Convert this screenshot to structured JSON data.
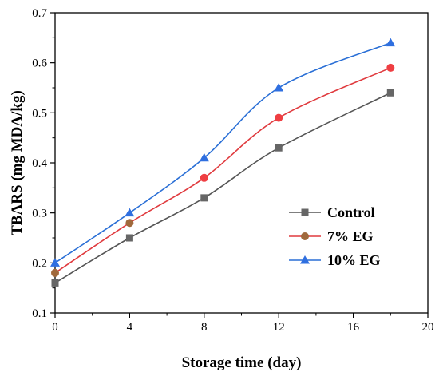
{
  "chart_data": {
    "type": "line",
    "title": "",
    "xlabel": "Storage time (day)",
    "ylabel": "TBARS (mg MDA/kg)",
    "xlim": [
      0,
      20
    ],
    "ylim": [
      0.1,
      0.7
    ],
    "x_ticks": [
      0,
      4,
      8,
      12,
      16,
      20
    ],
    "y_ticks": [
      0.1,
      0.2,
      0.3,
      0.4,
      0.5,
      0.6,
      0.7
    ],
    "grid": false,
    "legend_position": "center-right",
    "series": [
      {
        "name": "Control",
        "marker": "square",
        "line_color": "#555555",
        "marker_color": "#666666",
        "x": [
          0,
          4,
          8,
          12,
          18
        ],
        "values": [
          0.16,
          0.25,
          0.33,
          0.43,
          0.54
        ]
      },
      {
        "name": "7% EG",
        "marker": "circle",
        "line_color": "#e03a3e",
        "marker_color": "#ef3e42",
        "marker_color_alt": "#a0693c",
        "x": [
          0,
          4,
          8,
          12,
          18
        ],
        "values": [
          0.18,
          0.28,
          0.37,
          0.49,
          0.59
        ]
      },
      {
        "name": "10% EG",
        "marker": "triangle",
        "line_color": "#2a6fd6",
        "marker_color": "#2f6fe0",
        "x": [
          0,
          4,
          8,
          12,
          18
        ],
        "values": [
          0.2,
          0.3,
          0.41,
          0.55,
          0.64
        ]
      }
    ]
  }
}
